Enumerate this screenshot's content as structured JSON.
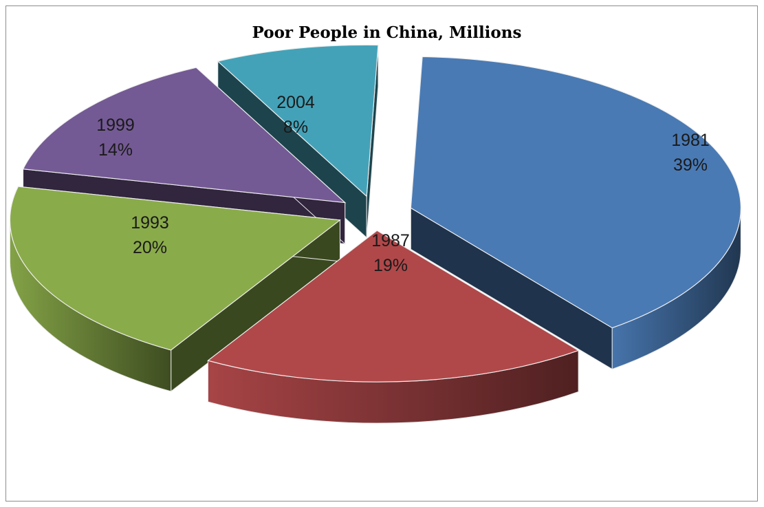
{
  "chart_data": {
    "type": "pie",
    "style": "3d-exploded",
    "title": "Poor People in China, Millions",
    "legend": "none",
    "slices": [
      {
        "label": "1981",
        "percent_label": "39%",
        "value": 39,
        "color": "#4a7ab4"
      },
      {
        "label": "1987",
        "percent_label": "19%",
        "value": 19,
        "color": "#b0484a"
      },
      {
        "label": "1993",
        "percent_label": "20%",
        "value": 20,
        "color": "#8aab4a"
      },
      {
        "label": "1999",
        "percent_label": "14%",
        "value": 14,
        "color": "#745a94"
      },
      {
        "label": "2004",
        "percent_label": "8%",
        "value": 8,
        "color": "#44a2b8"
      }
    ]
  }
}
